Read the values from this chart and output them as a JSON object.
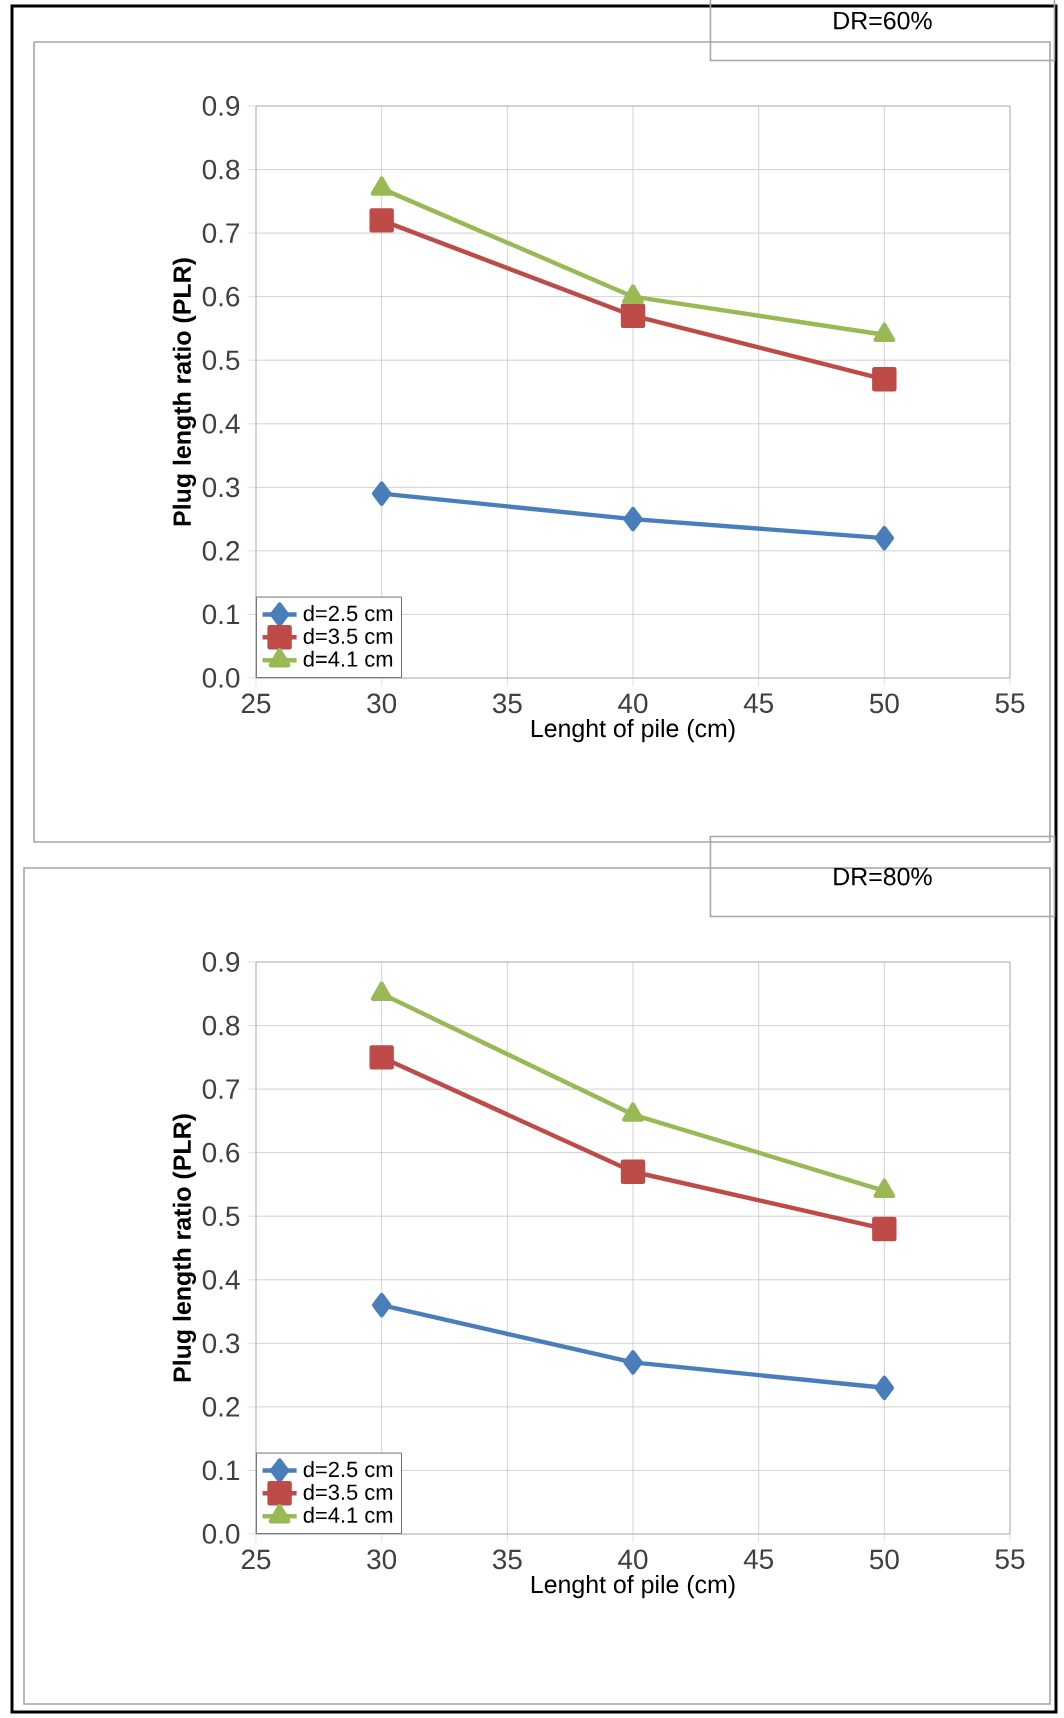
{
  "chart_data": [
    {
      "type": "line",
      "title": "DR=60%",
      "xlabel": "Lenght of pile (cm)",
      "ylabel": "Plug length ratio (PLR)",
      "x": [
        30,
        40,
        50
      ],
      "xlim": [
        25,
        55
      ],
      "xticks": [
        25,
        30,
        35,
        40,
        45,
        50,
        55
      ],
      "ylim": [
        0,
        0.9
      ],
      "yticks": [
        {
          "value": 0,
          "label": "0.0"
        },
        0.1,
        0.2,
        0.3,
        0.4,
        0.5,
        0.6,
        0.7,
        0.8,
        0.9
      ],
      "grid": true,
      "legend": "bottom left",
      "series": [
        {
          "name": "d=2.5 cm",
          "color": "#4a7ebb",
          "marker": "diamond",
          "values": [
            0.29,
            0.25,
            0.22
          ]
        },
        {
          "name": "d=3.5 cm",
          "color": "#be4b48",
          "marker": "square",
          "values": [
            0.72,
            0.57,
            0.47
          ]
        },
        {
          "name": "d=4.1 cm",
          "color": "#98b954",
          "marker": "triangle",
          "values": [
            0.77,
            0.6,
            0.54
          ]
        }
      ]
    },
    {
      "type": "line",
      "title": "DR=80%",
      "xlabel": "Lenght of pile (cm)",
      "ylabel": "Plug length ratio (PLR)",
      "x": [
        30,
        40,
        50
      ],
      "xlim": [
        25,
        55
      ],
      "xticks": [
        25,
        30,
        35,
        40,
        45,
        50,
        55
      ],
      "ylim": [
        0,
        0.9
      ],
      "yticks": [
        {
          "value": 0,
          "label": "0.0"
        },
        0.1,
        0.2,
        0.3,
        0.4,
        0.5,
        0.6,
        0.7,
        0.8,
        0.9
      ],
      "grid": true,
      "legend": "bottom left",
      "series": [
        {
          "name": "d=2.5 cm",
          "color": "#4a7ebb",
          "marker": "diamond",
          "values": [
            0.36,
            0.27,
            0.23
          ]
        },
        {
          "name": "d=3.5 cm",
          "color": "#be4b48",
          "marker": "square",
          "values": [
            0.75,
            0.57,
            0.48
          ]
        },
        {
          "name": "d=4.1 cm",
          "color": "#98b954",
          "marker": "triangle",
          "values": [
            0.85,
            0.66,
            0.54
          ]
        }
      ]
    }
  ]
}
